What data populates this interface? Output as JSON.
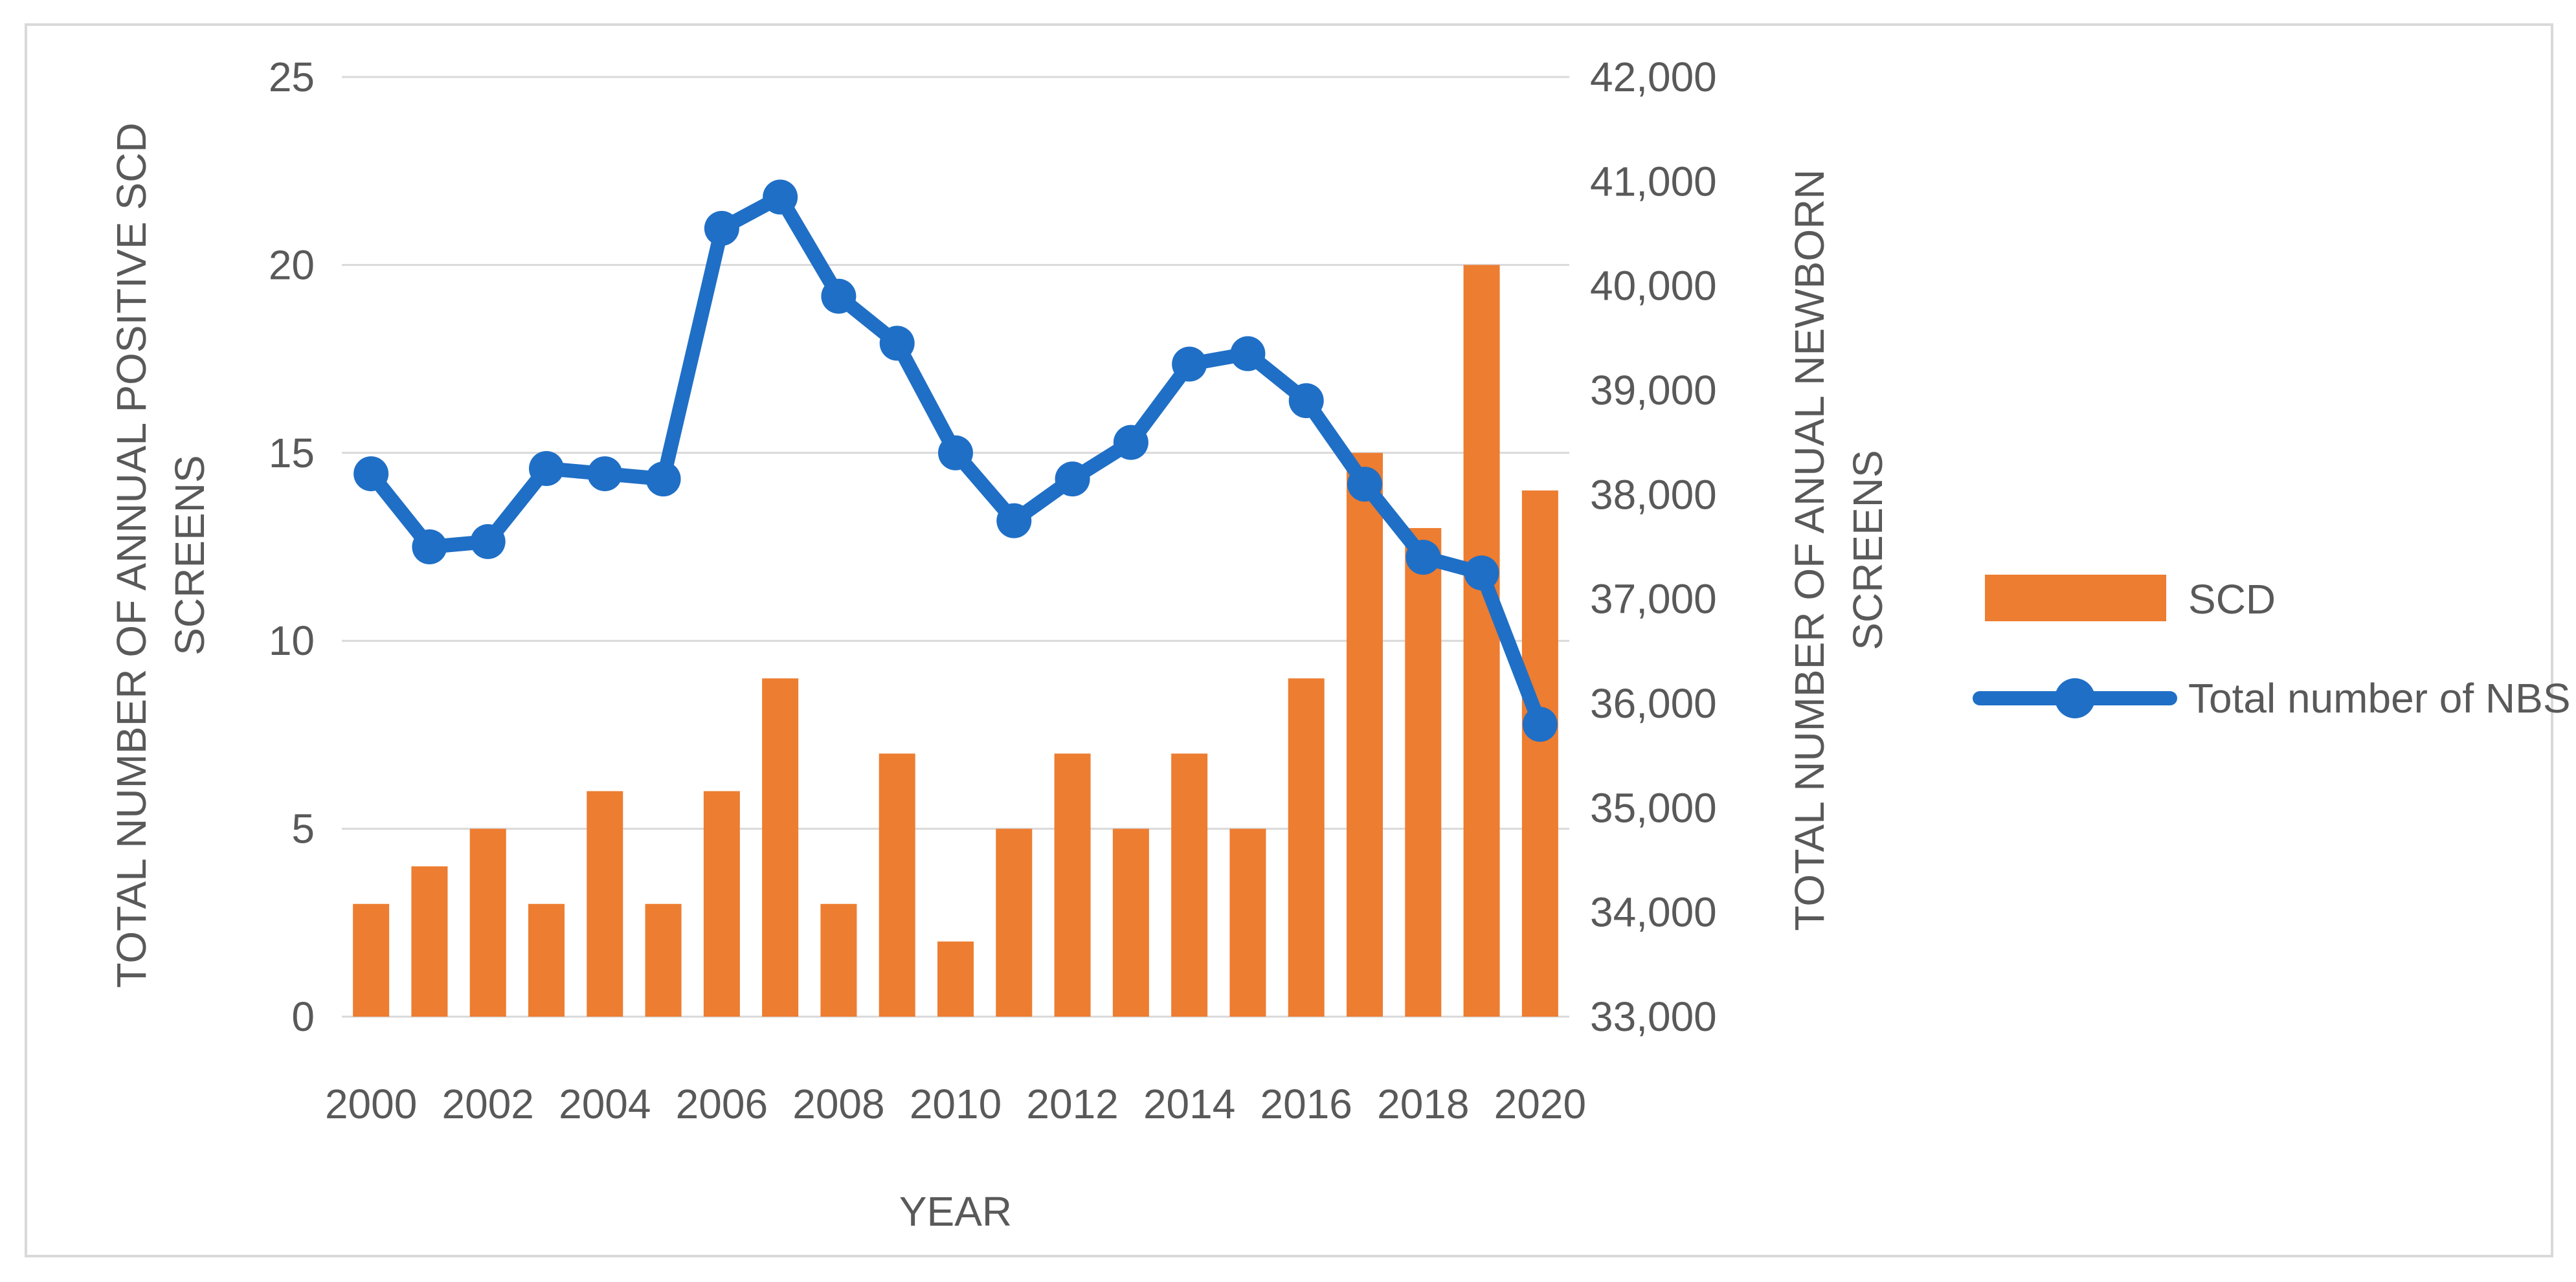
{
  "chart_frame": {
    "background": "#FFFFFF",
    "border_color": "#D9D9D9"
  },
  "styles": {
    "text_color": "#595959",
    "gridline_color": "#D9D9D9"
  },
  "chart_data": {
    "type": "combo-bar-line",
    "title": "",
    "xlabel": "YEAR",
    "grid": "horizontal",
    "legend_position": "right",
    "categories": [
      2000,
      2001,
      2002,
      2003,
      2004,
      2005,
      2006,
      2007,
      2008,
      2009,
      2010,
      2011,
      2012,
      2013,
      2014,
      2015,
      2016,
      2017,
      2018,
      2019,
      2020
    ],
    "x_tick_labels": [
      "2000",
      "2002",
      "2004",
      "2006",
      "2008",
      "2010",
      "2012",
      "2014",
      "2016",
      "2018",
      "2020"
    ],
    "left_axis": {
      "title_line1": "TOTAL NUMBER OF ANNUAL POSITIVE SCD",
      "title_line2": "SCREENS",
      "min": 0,
      "max": 25,
      "ticks": [
        {
          "label": "25",
          "value": 25
        },
        {
          "label": "20",
          "value": 20
        },
        {
          "label": "15",
          "value": 15
        },
        {
          "label": "10",
          "value": 10
        },
        {
          "label": "5",
          "value": 5
        },
        {
          "label": "0",
          "value": 0
        }
      ]
    },
    "right_axis": {
      "title_line1": "TOTAL NUMBER OF ANUAL NEWBORN",
      "title_line2": "SCREENS",
      "min": 33000,
      "max": 42000,
      "ticks": [
        {
          "label": "42,000",
          "value": 42000
        },
        {
          "label": "41,000",
          "value": 41000
        },
        {
          "label": "40,000",
          "value": 40000
        },
        {
          "label": "39,000",
          "value": 39000
        },
        {
          "label": "38,000",
          "value": 38000
        },
        {
          "label": "37,000",
          "value": 37000
        },
        {
          "label": "36,000",
          "value": 36000
        },
        {
          "label": "35,000",
          "value": 35000
        },
        {
          "label": "34,000",
          "value": 34000
        },
        {
          "label": "33,000",
          "value": 33000
        }
      ]
    },
    "series": [
      {
        "name": "SCD",
        "type": "bar",
        "axis": "left",
        "color": "#ED7D31",
        "values": [
          3,
          4,
          5,
          3,
          6,
          3,
          6,
          9,
          3,
          7,
          2,
          5,
          7,
          5,
          7,
          5,
          9,
          15,
          13,
          20,
          14
        ]
      },
      {
        "name": "Total number of NBS",
        "type": "line",
        "axis": "right",
        "color": "#1F6FC6",
        "values": [
          38200,
          37500,
          37550,
          38250,
          38200,
          38150,
          40550,
          40850,
          39900,
          39450,
          38400,
          37750,
          38150,
          38500,
          39250,
          39350,
          38900,
          38100,
          37400,
          37250,
          35800
        ]
      }
    ],
    "legend": {
      "entries": [
        "SCD",
        "Total number of NBS"
      ]
    }
  }
}
